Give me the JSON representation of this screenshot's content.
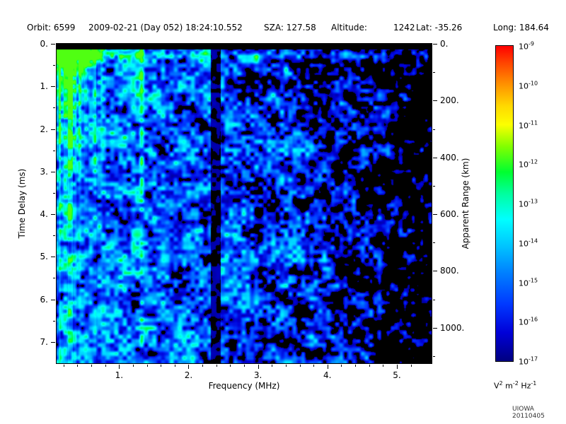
{
  "header": {
    "orbit_label": "Orbit:",
    "orbit_value": "6599",
    "datetime": "2009-02-21 (Day 052) 18:24:10.552",
    "sza_label": "SZA:",
    "sza_value": "127.58",
    "altitude_label": "Altitude:",
    "altitude_value": "1242",
    "lat_label": "Lat:",
    "lat_value": "-35.26",
    "long_label": "Long:",
    "long_value": "184.64"
  },
  "chart_data": {
    "type": "heatmap",
    "xlabel": "Frequency (MHz)",
    "ylabel_left": "Time Delay (ms)",
    "ylabel_right": "Apparent Range (km)",
    "x_range_mhz": [
      0.1,
      5.5
    ],
    "y_range_ms": [
      0,
      7.5
    ],
    "y_right_range_km": [
      0,
      1125
    ],
    "x_ticks": [
      {
        "value": 1,
        "label": "1."
      },
      {
        "value": 2,
        "label": "2."
      },
      {
        "value": 3,
        "label": "3."
      },
      {
        "value": 4,
        "label": "4."
      },
      {
        "value": 5,
        "label": "5."
      }
    ],
    "y_ticks_left": [
      {
        "value": 0,
        "label": "0."
      },
      {
        "value": 1,
        "label": "1."
      },
      {
        "value": 2,
        "label": "2."
      },
      {
        "value": 3,
        "label": "3."
      },
      {
        "value": 4,
        "label": "4."
      },
      {
        "value": 5,
        "label": "5."
      },
      {
        "value": 6,
        "label": "6."
      },
      {
        "value": 7,
        "label": "7."
      }
    ],
    "y_ticks_right": [
      {
        "value": 0,
        "label": "0."
      },
      {
        "value": 200,
        "label": "200."
      },
      {
        "value": 400,
        "label": "400."
      },
      {
        "value": 600,
        "label": "600."
      },
      {
        "value": 800,
        "label": "800."
      },
      {
        "value": 1000,
        "label": "1000."
      }
    ],
    "colorbar": {
      "scale": "log",
      "exponent_ticks": [
        -9,
        -10,
        -11,
        -12,
        -13,
        -14,
        -15,
        -16,
        -17
      ],
      "unit_parts": [
        {
          "base": "V",
          "exp": "2"
        },
        {
          "base": "m",
          "exp": "-2"
        },
        {
          "base": "Hz",
          "exp": "-1"
        }
      ],
      "gradient": [
        {
          "pos": 0.0,
          "color": "#ff0000"
        },
        {
          "pos": 0.05,
          "color": "#ff4000"
        },
        {
          "pos": 0.12,
          "color": "#ff9000"
        },
        {
          "pos": 0.19,
          "color": "#ffd800"
        },
        {
          "pos": 0.25,
          "color": "#fcff00"
        },
        {
          "pos": 0.32,
          "color": "#80ff00"
        },
        {
          "pos": 0.4,
          "color": "#00ff30"
        },
        {
          "pos": 0.47,
          "color": "#00ffa0"
        },
        {
          "pos": 0.55,
          "color": "#00ffff"
        },
        {
          "pos": 0.63,
          "color": "#00c8ff"
        },
        {
          "pos": 0.72,
          "color": "#0080ff"
        },
        {
          "pos": 0.82,
          "color": "#0038ff"
        },
        {
          "pos": 0.91,
          "color": "#0000d8"
        },
        {
          "pos": 1.0,
          "color": "#000080"
        }
      ]
    },
    "features": {
      "background_noise": "speckled blue noise on black, density decreasing with frequency",
      "ionospheric_emission_max_mhz": 0.85,
      "surface_band_delay_ms": 0.27,
      "bright_line_mhz": 1.32,
      "blackout_band_mhz": [
        2.32,
        2.46
      ],
      "transmit_blank_ms": 0.13
    }
  },
  "footer": {
    "credit": "UIOWA 20110405"
  }
}
